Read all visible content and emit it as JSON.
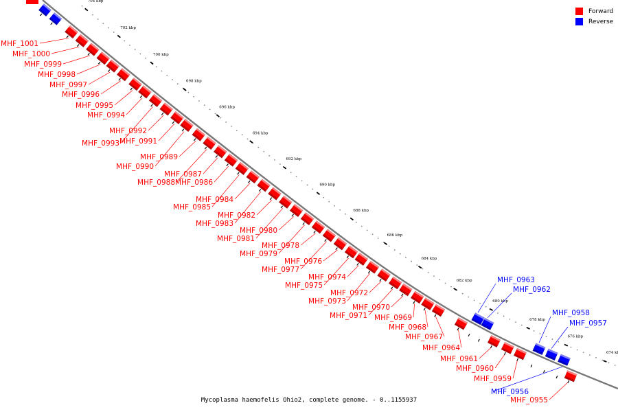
{
  "colors": {
    "forward": "#ff0000",
    "reverse": "#0000ff",
    "backbone": "#777777"
  },
  "legend": {
    "forward_label": "Forward",
    "reverse_label": "Reverse"
  },
  "caption": "Mycoplasma haemofelis Ohio2, complete genome. - 0..1155937",
  "ticks": [
    "704 kbp",
    "702 kbp",
    "700 kbp",
    "698 kbp",
    "696 kbp",
    "694 kbp",
    "692 kbp",
    "690 kbp",
    "688 kbp",
    "686 kbp",
    "684 kbp",
    "682 kbp",
    "680 kbp",
    "678 kbp",
    "676 kbp",
    "674 kbp"
  ],
  "forward_genes": [
    "MHF_1001",
    "MHF_1000",
    "MHF_0999",
    "MHF_0998",
    "MHF_0997",
    "MHF_0996",
    "MHF_0995",
    "MHF_0994",
    "MHF_0993",
    "MHF_0992",
    "MHF_0991",
    "MHF_0990",
    "MHF_0989",
    "MHF_0988",
    "MHF_0987",
    "MHF_0986",
    "MHF_0985",
    "MHF_0984",
    "MHF_0983",
    "MHF_0982",
    "MHF_0981",
    "MHF_0980",
    "MHF_0979",
    "MHF_0978",
    "MHF_0977",
    "MHF_0976",
    "MHF_0975",
    "MHF_0974",
    "MHF_0973",
    "MHF_0972",
    "MHF_0971",
    "MHF_0970",
    "MHF_0969",
    "MHF_0968",
    "MHF_0967",
    "MHF_0964",
    "MHF_0961",
    "MHF_0960",
    "MHF_0959",
    "MHF_0955"
  ],
  "reverse_genes": [
    "MHF_0963",
    "MHF_0962",
    "MHF_0958",
    "MHF_0957",
    "MHF_0956"
  ]
}
